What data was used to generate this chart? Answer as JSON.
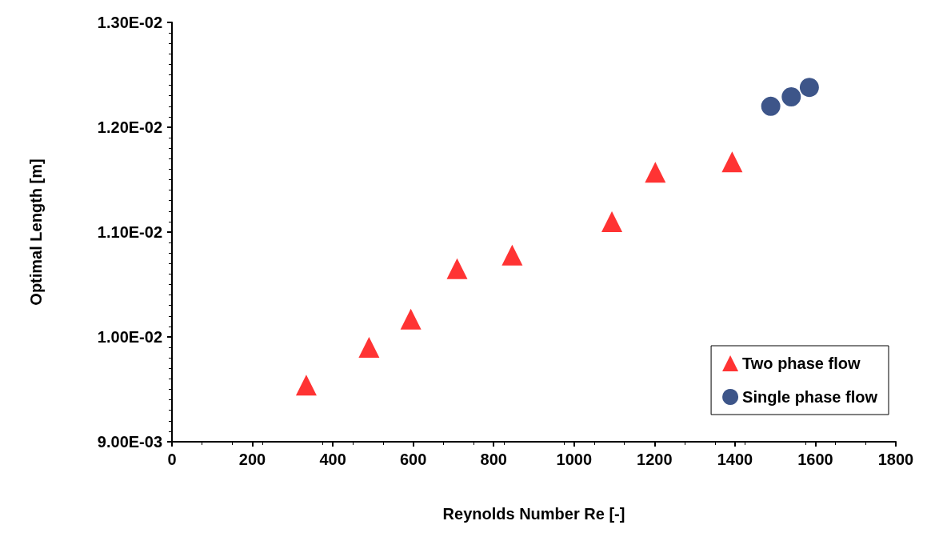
{
  "chart_data": {
    "type": "scatter",
    "xlabel": "Reynolds Number Re [-]",
    "ylabel": "Optimal Length [m]",
    "series": [
      {
        "name": "Two phase flow",
        "color": "#ff0000",
        "marker": "triangle",
        "x": [
          334,
          490,
          594,
          709,
          846,
          1094,
          1202,
          1393
        ],
        "values": [
          0.00954,
          0.0099,
          0.01017,
          0.01065,
          0.01078,
          0.0111,
          0.01157,
          0.01167
        ]
      },
      {
        "name": "Single phase flow",
        "color": "#0d2a6b",
        "marker": "circle",
        "x": [
          1489,
          1540,
          1585
        ],
        "values": [
          0.0122,
          0.01229,
          0.01238
        ]
      }
    ],
    "xlim": [
      0,
      1800
    ],
    "xticks": [
      0,
      200,
      400,
      600,
      800,
      1000,
      1200,
      1400,
      1600,
      1800
    ],
    "ylim": [
      0.009,
      0.013
    ],
    "yticks": [
      {
        "value": 0.009,
        "label": "9.00E-03"
      },
      {
        "value": 0.01,
        "label": "1.00E-02"
      },
      {
        "value": 0.011,
        "label": "1.10E-02"
      },
      {
        "value": 0.012,
        "label": "1.20E-02"
      },
      {
        "value": 0.013,
        "label": "1.30E-02"
      }
    ],
    "grid": false,
    "legend": "bottom right"
  }
}
